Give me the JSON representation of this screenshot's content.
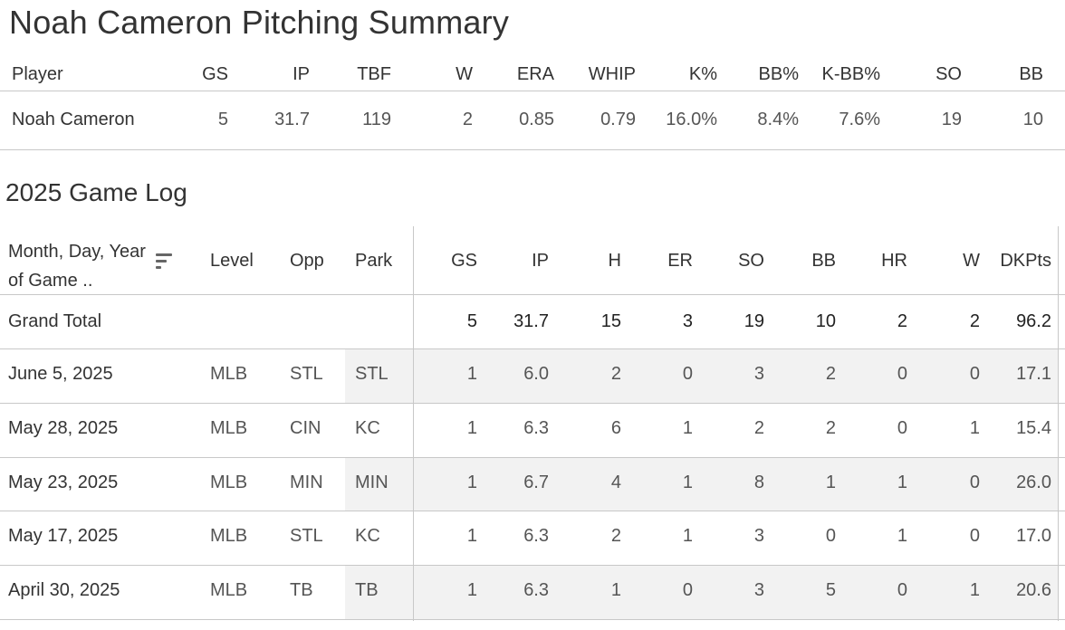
{
  "title": "Noah Cameron Pitching Summary",
  "summary": {
    "headers": [
      "Player",
      "GS",
      "IP",
      "TBF",
      "W",
      "ERA",
      "WHIP",
      "K%",
      "BB%",
      "K-BB%",
      "SO",
      "BB"
    ],
    "row": [
      "Noah Cameron",
      "5",
      "31.7",
      "119",
      "2",
      "0.85",
      "0.79",
      "16.0%",
      "8.4%",
      "7.6%",
      "19",
      "10"
    ]
  },
  "game_log": {
    "title": "2025 Game Log",
    "date_header": "Month, Day, Year of Game ..",
    "sort_icon": "sort-descending-icon",
    "headers": [
      "Level",
      "Opp",
      "Park",
      "GS",
      "IP",
      "H",
      "ER",
      "SO",
      "BB",
      "HR",
      "W",
      "DKPts"
    ],
    "total": {
      "label": "Grand Total",
      "values": [
        "5",
        "31.7",
        "15",
        "3",
        "19",
        "10",
        "2",
        "2",
        "96.2"
      ]
    },
    "rows": [
      {
        "date": "June 5, 2025",
        "level": "MLB",
        "opp": "STL",
        "park": "STL",
        "values": [
          "1",
          "6.0",
          "2",
          "0",
          "3",
          "2",
          "0",
          "0",
          "17.1"
        ]
      },
      {
        "date": "May 28, 2025",
        "level": "MLB",
        "opp": "CIN",
        "park": "KC",
        "values": [
          "1",
          "6.3",
          "6",
          "1",
          "2",
          "2",
          "0",
          "1",
          "15.4"
        ]
      },
      {
        "date": "May 23, 2025",
        "level": "MLB",
        "opp": "MIN",
        "park": "MIN",
        "values": [
          "1",
          "6.7",
          "4",
          "1",
          "8",
          "1",
          "1",
          "0",
          "26.0"
        ]
      },
      {
        "date": "May 17, 2025",
        "level": "MLB",
        "opp": "STL",
        "park": "KC",
        "values": [
          "1",
          "6.3",
          "2",
          "1",
          "3",
          "0",
          "1",
          "0",
          "17.0"
        ]
      },
      {
        "date": "April 30, 2025",
        "level": "MLB",
        "opp": "TB",
        "park": "TB",
        "values": [
          "1",
          "6.3",
          "1",
          "0",
          "3",
          "5",
          "0",
          "1",
          "20.6"
        ]
      }
    ]
  }
}
